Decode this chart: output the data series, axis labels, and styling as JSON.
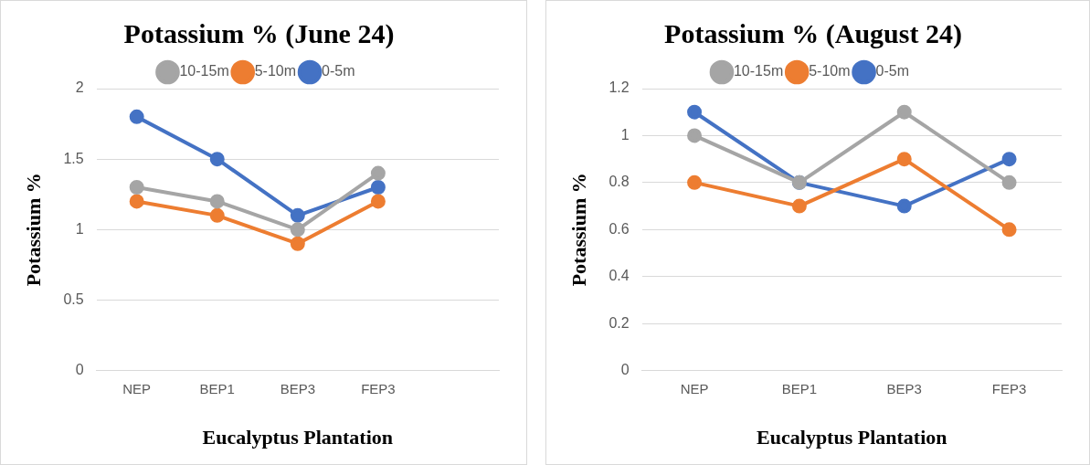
{
  "chart_data": [
    {
      "type": "line",
      "title": "Potassium % (June 24)",
      "xlabel": "Eucalyptus Plantation",
      "ylabel": "Potassium %",
      "categories": [
        "NEP",
        "BEP1",
        "BEP3",
        "FEP3",
        null
      ],
      "ylim": [
        0,
        2
      ],
      "yticks": [
        0,
        0.5,
        1,
        1.5,
        2
      ],
      "grid": "y",
      "legend": "top",
      "marker": "circle",
      "line_style": "solid",
      "series": [
        {
          "name": "0-5m",
          "color": "#4472c4",
          "values": [
            1.8,
            1.5,
            1.1,
            1.3,
            null
          ]
        },
        {
          "name": "5-10m",
          "color": "#ed7d31",
          "values": [
            1.2,
            1.1,
            0.9,
            1.2,
            null
          ]
        },
        {
          "name": "10-15m",
          "color": "#a5a5a5",
          "values": [
            1.3,
            1.2,
            1.0,
            1.4,
            null
          ]
        }
      ]
    },
    {
      "type": "line",
      "title": "Potassium % (August 24)",
      "xlabel": "Eucalyptus Plantation",
      "ylabel": "Potassium %",
      "categories": [
        "NEP",
        "BEP1",
        "BEP3",
        "FEP3"
      ],
      "ylim": [
        0,
        1.2
      ],
      "yticks": [
        0,
        0.2,
        0.4,
        0.6,
        0.8,
        1,
        1.2
      ],
      "grid": "y",
      "legend": "top",
      "marker": "circle",
      "line_style": "solid",
      "series": [
        {
          "name": "0-5m",
          "color": "#4472c4",
          "values": [
            1.1,
            0.8,
            0.7,
            0.9
          ]
        },
        {
          "name": "5-10m",
          "color": "#ed7d31",
          "values": [
            0.8,
            0.7,
            0.9,
            0.6
          ]
        },
        {
          "name": "10-15m",
          "color": "#a5a5a5",
          "values": [
            1.0,
            0.8,
            1.1,
            0.8
          ]
        }
      ]
    }
  ]
}
